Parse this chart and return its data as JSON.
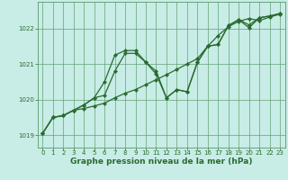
{
  "title": "",
  "xlabel": "Graphe pression niveau de la mer (hPa)",
  "background_color": "#c8ece6",
  "grid_color": "#5a9a6a",
  "line_color": "#2a6b30",
  "ylim": [
    1018.65,
    1022.75
  ],
  "xlim": [
    -0.5,
    23.5
  ],
  "yticks": [
    1019,
    1020,
    1021,
    1022
  ],
  "xticks": [
    0,
    1,
    2,
    3,
    4,
    5,
    6,
    7,
    8,
    9,
    10,
    11,
    12,
    13,
    14,
    15,
    16,
    17,
    18,
    19,
    20,
    21,
    22,
    23
  ],
  "line1_x": [
    0,
    1,
    2,
    3,
    4,
    5,
    6,
    7,
    8,
    9,
    10,
    11,
    12,
    13,
    14,
    15,
    16,
    17,
    18,
    19,
    20,
    21,
    22,
    23
  ],
  "line1_y": [
    1019.05,
    1019.5,
    1019.55,
    1019.7,
    1019.75,
    1019.82,
    1019.9,
    1020.05,
    1020.18,
    1020.28,
    1020.42,
    1020.56,
    1020.7,
    1020.85,
    1021.0,
    1021.15,
    1021.5,
    1021.8,
    1022.05,
    1022.2,
    1022.28,
    1022.22,
    1022.32,
    1022.4
  ],
  "line2_x": [
    0,
    1,
    2,
    3,
    4,
    5,
    6,
    7,
    8,
    9,
    10,
    11,
    12,
    13,
    14,
    15,
    16,
    17,
    18,
    19,
    20,
    21,
    22,
    23
  ],
  "line2_y": [
    1019.05,
    1019.5,
    1019.55,
    1019.7,
    1019.85,
    1020.05,
    1020.5,
    1021.25,
    1021.38,
    1021.38,
    1021.05,
    1020.8,
    1020.05,
    1020.28,
    1020.22,
    1021.05,
    1021.5,
    1021.55,
    1022.08,
    1022.25,
    1022.02,
    1022.3,
    1022.35,
    1022.42
  ],
  "line3_x": [
    0,
    1,
    2,
    3,
    4,
    5,
    6,
    7,
    8,
    9,
    10,
    11,
    12,
    13,
    14,
    15,
    16,
    17,
    18,
    19,
    20,
    21,
    22,
    23
  ],
  "line3_y": [
    1019.05,
    1019.5,
    1019.55,
    1019.7,
    1019.85,
    1020.05,
    1020.12,
    1020.8,
    1021.3,
    1021.3,
    1021.05,
    1020.72,
    1020.05,
    1020.28,
    1020.22,
    1021.05,
    1021.5,
    1021.55,
    1022.08,
    1022.25,
    1022.1,
    1022.3,
    1022.35,
    1022.42
  ],
  "marker": "D",
  "markersize": 2.2,
  "linewidth": 0.9,
  "xlabel_fontsize": 6.5,
  "tick_fontsize": 5.0,
  "xlabel_color": "#2a6b30",
  "xlabel_fontweight": "bold"
}
